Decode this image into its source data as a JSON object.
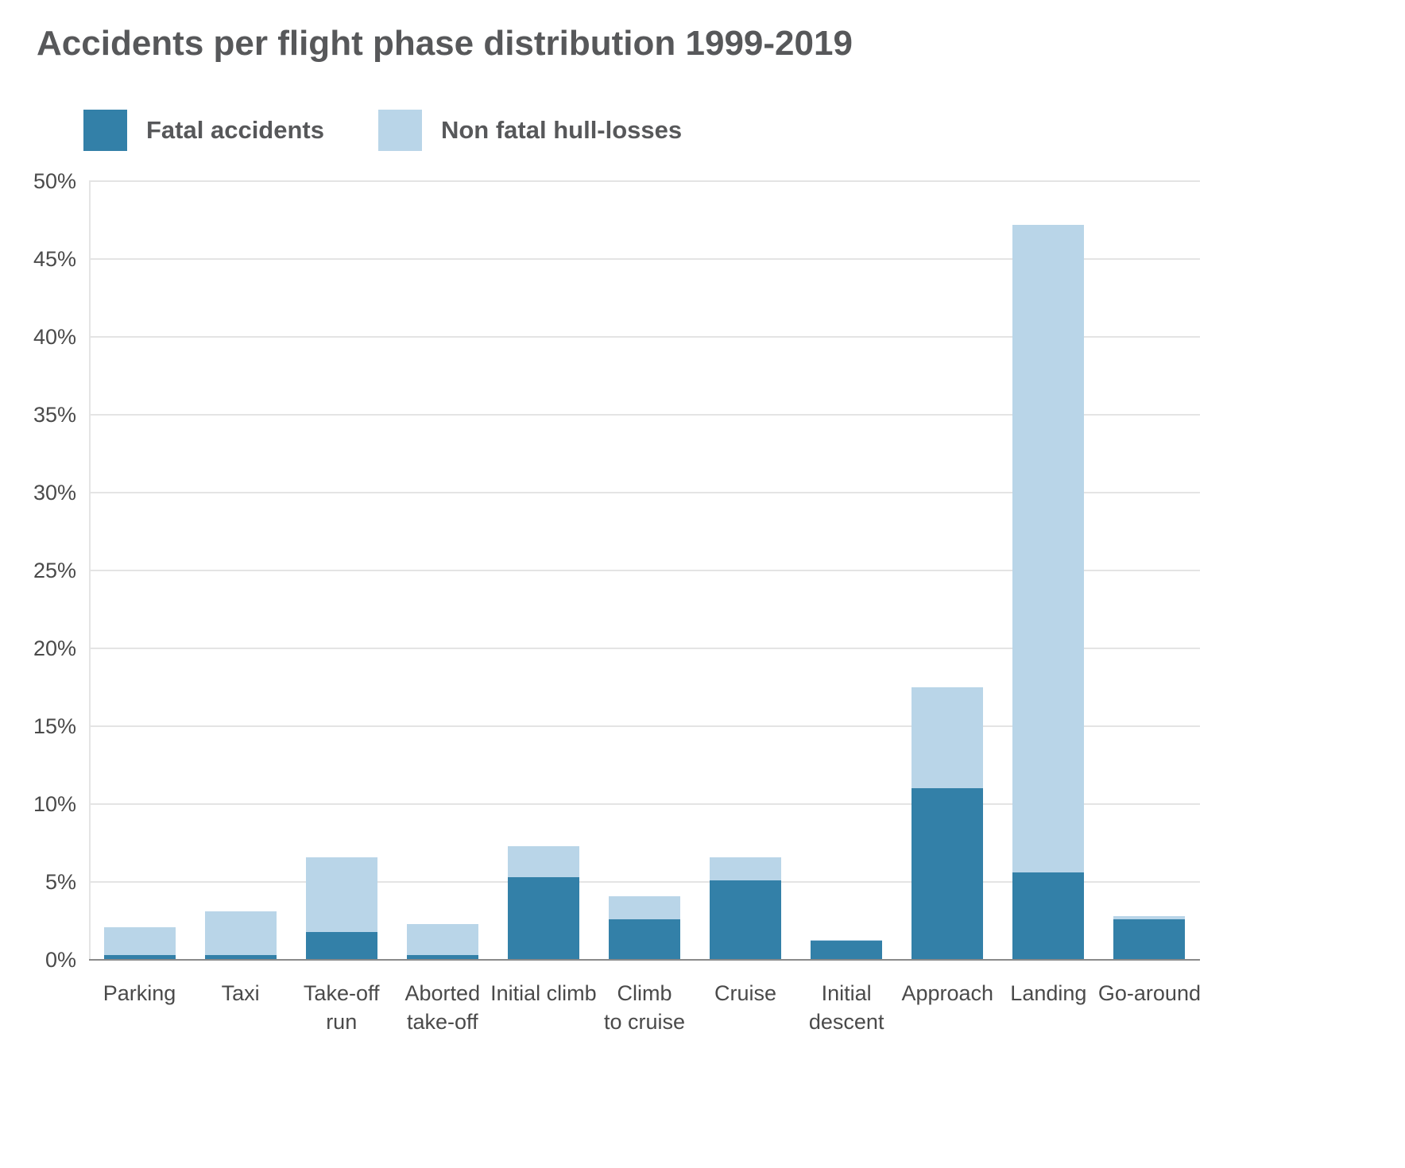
{
  "chart_data": {
    "type": "bar",
    "stacked": true,
    "title": "Accidents per flight phase distribution 1999-2019",
    "categories": [
      "Parking",
      "Taxi",
      "Take-off run",
      "Aborted take-off",
      "Initial climb",
      "Climb to cruise",
      "Cruise",
      "Initial descent",
      "Approach",
      "Landing",
      "Go-around"
    ],
    "category_label_lines": [
      [
        "Parking"
      ],
      [
        "Taxi"
      ],
      [
        "Take-off",
        "run"
      ],
      [
        "Aborted",
        "take-off"
      ],
      [
        "Initial climb"
      ],
      [
        "Climb",
        "to cruise"
      ],
      [
        "Cruise"
      ],
      [
        "Initial",
        "descent"
      ],
      [
        "Approach"
      ],
      [
        "Landing"
      ],
      [
        "Go-around"
      ]
    ],
    "series": [
      {
        "name": "Fatal accidents",
        "color": "#3380a8",
        "values": [
          0.3,
          0.3,
          1.8,
          0.3,
          5.3,
          2.6,
          5.1,
          1.2,
          11.0,
          5.6,
          2.6
        ]
      },
      {
        "name": "Non fatal hull-losses",
        "color": "#b9d5e8",
        "values": [
          1.8,
          2.8,
          4.8,
          2.0,
          2.0,
          1.5,
          1.5,
          0.1,
          6.5,
          41.6,
          0.2
        ]
      }
    ],
    "totals": [
      2.1,
      3.1,
      6.6,
      2.3,
      7.3,
      4.1,
      6.6,
      1.3,
      17.5,
      47.2,
      2.8
    ],
    "ylim": [
      0,
      50
    ],
    "ytick_step": 5,
    "ytick_suffix": "%",
    "grid": "horizontal",
    "legend_position": "top-left"
  }
}
